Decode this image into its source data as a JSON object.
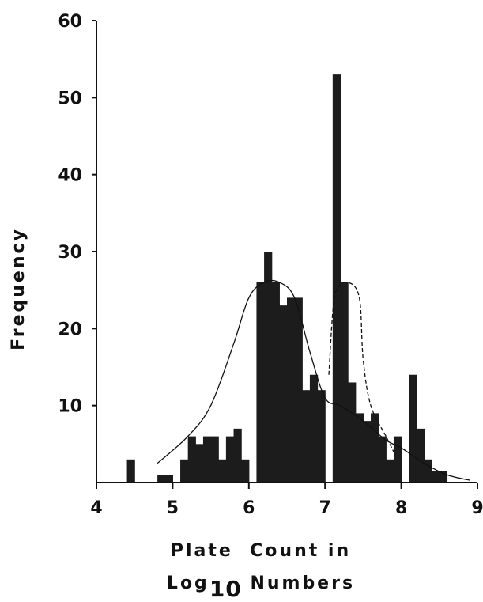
{
  "chart_data": {
    "type": "bar",
    "ylabel": "Frequency",
    "xlabel_line1": "Plate  Count in",
    "xlabel_line2_pre": "Log",
    "xlabel_line2_sub": "10",
    "xlabel_line2_post": " Numbers",
    "xlim": [
      4,
      9
    ],
    "ylim": [
      0,
      60
    ],
    "xticks": [
      "4",
      "5",
      "6",
      "7",
      "8",
      "9"
    ],
    "yticks": [
      "10",
      "20",
      "30",
      "40",
      "50",
      "60"
    ],
    "bin_width": 0.1,
    "bins": [
      {
        "x": 4.4,
        "value": 3
      },
      {
        "x": 4.8,
        "value": 1
      },
      {
        "x": 4.9,
        "value": 1
      },
      {
        "x": 5.1,
        "value": 3
      },
      {
        "x": 5.2,
        "value": 6
      },
      {
        "x": 5.3,
        "value": 5
      },
      {
        "x": 5.4,
        "value": 6
      },
      {
        "x": 5.5,
        "value": 6
      },
      {
        "x": 5.6,
        "value": 3
      },
      {
        "x": 5.7,
        "value": 6
      },
      {
        "x": 5.8,
        "value": 7
      },
      {
        "x": 5.9,
        "value": 3
      },
      {
        "x": 6.1,
        "value": 26
      },
      {
        "x": 6.2,
        "value": 30
      },
      {
        "x": 6.3,
        "value": 26
      },
      {
        "x": 6.4,
        "value": 23
      },
      {
        "x": 6.5,
        "value": 24
      },
      {
        "x": 6.6,
        "value": 24
      },
      {
        "x": 6.7,
        "value": 12
      },
      {
        "x": 6.8,
        "value": 14
      },
      {
        "x": 6.9,
        "value": 12
      },
      {
        "x": 7.1,
        "value": 53
      },
      {
        "x": 7.2,
        "value": 26
      },
      {
        "x": 7.3,
        "value": 13
      },
      {
        "x": 7.4,
        "value": 9
      },
      {
        "x": 7.5,
        "value": 8
      },
      {
        "x": 7.6,
        "value": 9
      },
      {
        "x": 7.7,
        "value": 6
      },
      {
        "x": 7.8,
        "value": 3
      },
      {
        "x": 7.9,
        "value": 6
      },
      {
        "x": 8.1,
        "value": 14
      },
      {
        "x": 8.2,
        "value": 7
      },
      {
        "x": 8.3,
        "value": 3
      },
      {
        "x": 8.4,
        "value": 1.5
      },
      {
        "x": 8.5,
        "value": 1.5
      }
    ],
    "fit_solid": [
      {
        "x": 4.8,
        "y": 2.5
      },
      {
        "x": 5.2,
        "y": 6
      },
      {
        "x": 5.5,
        "y": 10
      },
      {
        "x": 5.8,
        "y": 18
      },
      {
        "x": 6.0,
        "y": 24
      },
      {
        "x": 6.2,
        "y": 26
      },
      {
        "x": 6.4,
        "y": 26
      },
      {
        "x": 6.6,
        "y": 24
      },
      {
        "x": 6.8,
        "y": 17
      },
      {
        "x": 7.0,
        "y": 11
      },
      {
        "x": 7.2,
        "y": 10
      },
      {
        "x": 7.5,
        "y": 8
      },
      {
        "x": 7.8,
        "y": 5.5
      },
      {
        "x": 8.0,
        "y": 4.5
      },
      {
        "x": 8.3,
        "y": 2.5
      },
      {
        "x": 8.6,
        "y": 1
      },
      {
        "x": 8.9,
        "y": 0.3
      }
    ],
    "fit_dashed": [
      {
        "x": 7.05,
        "y": 14
      },
      {
        "x": 7.1,
        "y": 22
      },
      {
        "x": 7.15,
        "y": 25
      },
      {
        "x": 7.3,
        "y": 26
      },
      {
        "x": 7.45,
        "y": 24
      },
      {
        "x": 7.5,
        "y": 16
      },
      {
        "x": 7.6,
        "y": 10
      },
      {
        "x": 7.8,
        "y": 6
      },
      {
        "x": 7.9,
        "y": 4
      }
    ],
    "colors": {
      "bar": "#1c1c1c",
      "axis": "#111111",
      "curve": "#111111"
    }
  }
}
